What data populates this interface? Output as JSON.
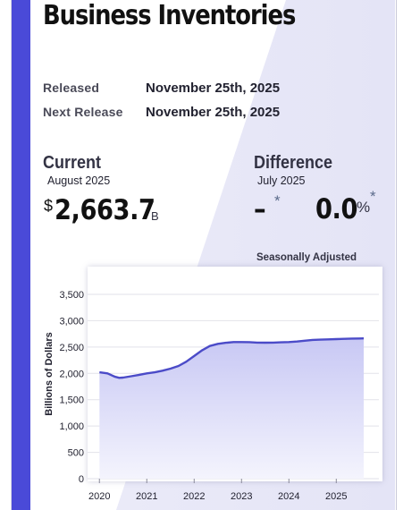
{
  "page": {
    "title": "Business Inventories",
    "released_label": "Released",
    "released_value": "November 25th, 2025",
    "next_label": "Next Release",
    "next_value": "November 25th, 2025"
  },
  "current": {
    "heading": "Current",
    "period": "August 2025",
    "currency_symbol": "$",
    "value": "2,663.7",
    "unit": "B"
  },
  "difference": {
    "heading": "Difference",
    "period": "July 2025",
    "absolute": "–",
    "absolute_mark": "*",
    "percent": "0.0",
    "percent_symbol": "%",
    "percent_mark": "*"
  },
  "chart_note": "Seasonally Adjusted",
  "colors": {
    "accent": "#4a4ad8",
    "line": "#4b4bc8",
    "area_top": "#c8c8f4",
    "area_bottom": "#f4f4fd"
  },
  "chart_data": {
    "type": "area",
    "title": "",
    "xlabel": "",
    "ylabel": "Billions of Dollars",
    "ylim": [
      0,
      3500
    ],
    "yticks": [
      0,
      500,
      1000,
      1500,
      2000,
      2500,
      3000,
      3500
    ],
    "ytick_labels": [
      "0",
      "500",
      "1,000",
      "1,500",
      "2,000",
      "2,500",
      "3,000",
      "3,500"
    ],
    "xticks": [
      2020,
      2021,
      2022,
      2023,
      2024,
      2025
    ],
    "xtick_labels": [
      "2020",
      "2021",
      "2022",
      "2023",
      "2024",
      "2025"
    ],
    "xlim": [
      2019.75,
      2025.9
    ],
    "grid": true,
    "series": [
      {
        "x": [
          2020.0,
          2020.17,
          2020.33,
          2020.42,
          2020.5,
          2020.67,
          2020.83,
          2021.0,
          2021.17,
          2021.33,
          2021.5,
          2021.67,
          2021.83,
          2022.0,
          2022.17,
          2022.33,
          2022.5,
          2022.67,
          2022.83,
          2023.0,
          2023.17,
          2023.33,
          2023.5,
          2023.67,
          2023.83,
          2024.0,
          2024.17,
          2024.33,
          2024.5,
          2024.67,
          2024.83,
          2025.0,
          2025.17,
          2025.33,
          2025.5,
          2025.58
        ],
        "values": [
          2020,
          2000,
          1935,
          1915,
          1920,
          1945,
          1970,
          2000,
          2020,
          2050,
          2090,
          2140,
          2220,
          2330,
          2440,
          2520,
          2560,
          2580,
          2595,
          2595,
          2592,
          2585,
          2583,
          2585,
          2590,
          2595,
          2605,
          2620,
          2635,
          2640,
          2645,
          2650,
          2655,
          2660,
          2662,
          2663.7
        ]
      }
    ]
  }
}
